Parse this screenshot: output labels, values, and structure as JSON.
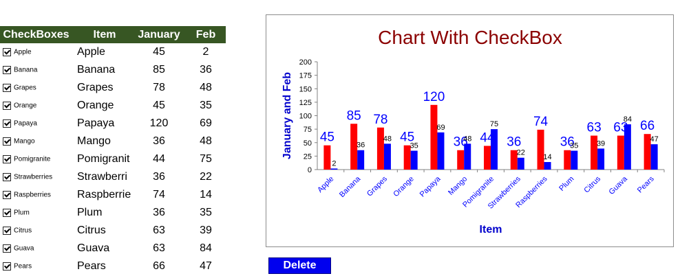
{
  "table": {
    "headers": {
      "checkboxes": "CheckBoxes",
      "item": "Item",
      "january": "January",
      "feb": "Feb"
    },
    "rows": [
      {
        "checkbox_label": "Apple",
        "item": "Apple",
        "january": "45",
        "feb": "2",
        "checked": true
      },
      {
        "checkbox_label": "Banana",
        "item": "Banana",
        "january": "85",
        "feb": "36",
        "checked": true
      },
      {
        "checkbox_label": "Grapes",
        "item": "Grapes",
        "january": "78",
        "feb": "48",
        "checked": true
      },
      {
        "checkbox_label": "Orange",
        "item": "Orange",
        "january": "45",
        "feb": "35",
        "checked": true
      },
      {
        "checkbox_label": "Papaya",
        "item": "Papaya",
        "january": "120",
        "feb": "69",
        "checked": true
      },
      {
        "checkbox_label": "Mango",
        "item": "Mango",
        "january": "36",
        "feb": "48",
        "checked": true
      },
      {
        "checkbox_label": "Pomigranite",
        "item": "Pomigranit",
        "january": "44",
        "feb": "75",
        "checked": true
      },
      {
        "checkbox_label": "Strawberries",
        "item": "Strawberri",
        "january": "36",
        "feb": "22",
        "checked": true
      },
      {
        "checkbox_label": "Raspberries",
        "item": "Raspberrie",
        "january": "74",
        "feb": "14",
        "checked": true
      },
      {
        "checkbox_label": "Plum",
        "item": "Plum",
        "january": "36",
        "feb": "35",
        "checked": true
      },
      {
        "checkbox_label": "Citrus",
        "item": "Citrus",
        "january": "63",
        "feb": "39",
        "checked": true
      },
      {
        "checkbox_label": "Guava",
        "item": "Guava",
        "january": "63",
        "feb": "84",
        "checked": true
      },
      {
        "checkbox_label": "Pears",
        "item": "Pears",
        "january": "66",
        "feb": "47",
        "checked": true
      }
    ]
  },
  "delete_button": {
    "label": "Delete"
  },
  "chart_data": {
    "type": "bar",
    "title": "Chart With CheckBox",
    "xlabel": "Item",
    "ylabel": "January and Feb",
    "ylim": [
      0,
      200
    ],
    "yticks": [
      0,
      25,
      50,
      75,
      100,
      125,
      150,
      175,
      200
    ],
    "categories": [
      "Apple",
      "Banana",
      "Grapes",
      "Orange",
      "Papaya",
      "Mango",
      "Pomigranite",
      "Strawberries",
      "Raspberries",
      "Plum",
      "Citrus",
      "Guava",
      "Pears"
    ],
    "series": [
      {
        "values": [
          45,
          85,
          78,
          45,
          120,
          36,
          44,
          36,
          74,
          36,
          63,
          63,
          66
        ],
        "color": "#ff0000",
        "label_color": "#0000ff"
      },
      {
        "values": [
          2,
          36,
          48,
          35,
          69,
          48,
          75,
          22,
          14,
          35,
          39,
          84,
          47
        ],
        "color": "#0000ff",
        "label_color": "#000000"
      }
    ],
    "grid": false,
    "legend": "none",
    "title_color": "#8b0000",
    "axis_label_color": "#0000cc"
  }
}
